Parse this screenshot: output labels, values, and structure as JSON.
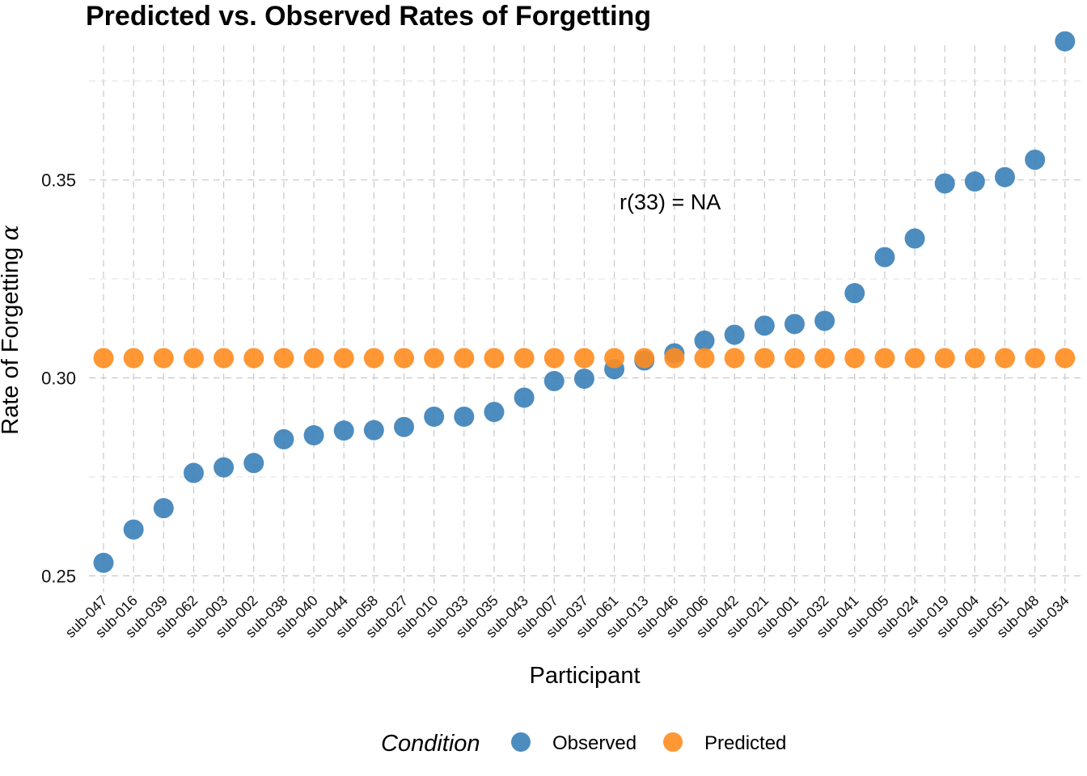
{
  "chart_data": {
    "type": "scatter",
    "title": "Predicted vs. Observed Rates of Forgetting",
    "xlabel": "Participant",
    "ylabel": "Rate of Forgetting",
    "ylabel_symbol": "α",
    "annotation": "r(33) = NA",
    "ylim": [
      0.246,
      0.384
    ],
    "yticks": [
      "0.25",
      "0.30",
      "0.35"
    ],
    "grid": true,
    "legend": {
      "title": "Condition",
      "position": "bottom",
      "entries": [
        {
          "name": "Observed",
          "color": "#3a7fb8"
        },
        {
          "name": "Predicted",
          "color": "#ff8c1f"
        }
      ]
    },
    "categories": [
      "sub-047",
      "sub-016",
      "sub-039",
      "sub-062",
      "sub-003",
      "sub-002",
      "sub-038",
      "sub-040",
      "sub-044",
      "sub-058",
      "sub-027",
      "sub-010",
      "sub-033",
      "sub-035",
      "sub-043",
      "sub-007",
      "sub-037",
      "sub-061",
      "sub-013",
      "sub-046",
      "sub-006",
      "sub-042",
      "sub-021",
      "sub-001",
      "sub-032",
      "sub-041",
      "sub-005",
      "sub-024",
      "sub-019",
      "sub-004",
      "sub-051",
      "sub-048",
      "sub-034"
    ],
    "series": [
      {
        "name": "Observed",
        "color": "#3a7fb8",
        "values": [
          0.2533,
          0.2617,
          0.2671,
          0.276,
          0.2774,
          0.2785,
          0.2845,
          0.2855,
          0.2867,
          0.2868,
          0.2876,
          0.2902,
          0.2902,
          0.2914,
          0.295,
          0.2992,
          0.2998,
          0.3022,
          0.3044,
          0.3062,
          0.3094,
          0.3109,
          0.3132,
          0.3136,
          0.3144,
          0.3214,
          0.3305,
          0.3352,
          0.3491,
          0.3496,
          0.3507,
          0.3551,
          0.385
        ]
      },
      {
        "name": "Predicted",
        "color": "#ff8c1f",
        "values": [
          0.305,
          0.305,
          0.305,
          0.305,
          0.305,
          0.305,
          0.305,
          0.305,
          0.305,
          0.305,
          0.305,
          0.305,
          0.305,
          0.305,
          0.305,
          0.305,
          0.305,
          0.305,
          0.305,
          0.305,
          0.305,
          0.305,
          0.305,
          0.305,
          0.305,
          0.305,
          0.305,
          0.305,
          0.305,
          0.305,
          0.305,
          0.305,
          0.305
        ]
      }
    ]
  }
}
